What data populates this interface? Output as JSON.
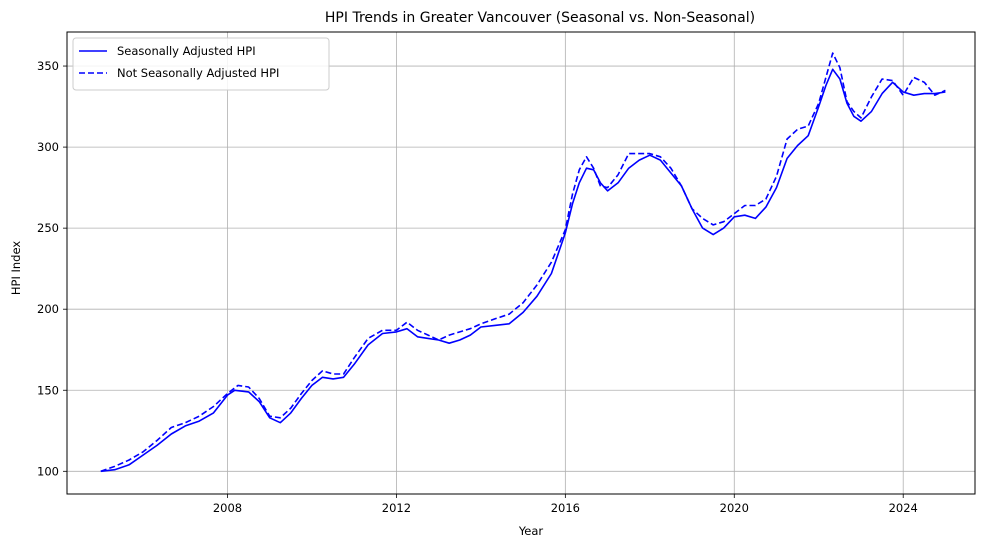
{
  "chart_data": {
    "type": "line",
    "title": "HPI Trends in Greater Vancouver (Seasonal vs. Non-Seasonal)",
    "xlabel": "Year",
    "ylabel": "HPI Index",
    "xlim": [
      2004.2,
      2025.7
    ],
    "ylim": [
      86,
      371
    ],
    "xticks": [
      2008,
      2012,
      2016,
      2020,
      2024
    ],
    "yticks": [
      100,
      150,
      200,
      250,
      300,
      350
    ],
    "grid": true,
    "legend_position": "top-left",
    "series": [
      {
        "name": "Seasonally Adjusted HPI",
        "color": "#0000ff",
        "dash": "solid",
        "points": [
          [
            2005.0,
            100
          ],
          [
            2005.33,
            101
          ],
          [
            2005.67,
            104
          ],
          [
            2006.0,
            110
          ],
          [
            2006.33,
            116
          ],
          [
            2006.67,
            123
          ],
          [
            2007.0,
            128
          ],
          [
            2007.33,
            131
          ],
          [
            2007.67,
            136
          ],
          [
            2008.0,
            147
          ],
          [
            2008.17,
            150
          ],
          [
            2008.5,
            149
          ],
          [
            2008.75,
            143
          ],
          [
            2009.0,
            133
          ],
          [
            2009.25,
            130
          ],
          [
            2009.5,
            136
          ],
          [
            2009.75,
            145
          ],
          [
            2010.0,
            153
          ],
          [
            2010.25,
            158
          ],
          [
            2010.5,
            157
          ],
          [
            2010.75,
            158
          ],
          [
            2011.0,
            166
          ],
          [
            2011.33,
            178
          ],
          [
            2011.67,
            185
          ],
          [
            2012.0,
            186
          ],
          [
            2012.25,
            188
          ],
          [
            2012.5,
            183
          ],
          [
            2012.75,
            182
          ],
          [
            2013.0,
            181
          ],
          [
            2013.25,
            179
          ],
          [
            2013.5,
            181
          ],
          [
            2013.75,
            184
          ],
          [
            2014.0,
            189
          ],
          [
            2014.33,
            190
          ],
          [
            2014.67,
            191
          ],
          [
            2015.0,
            198
          ],
          [
            2015.33,
            208
          ],
          [
            2015.67,
            222
          ],
          [
            2016.0,
            247
          ],
          [
            2016.17,
            265
          ],
          [
            2016.33,
            278
          ],
          [
            2016.5,
            287
          ],
          [
            2016.67,
            286
          ],
          [
            2016.83,
            278
          ],
          [
            2017.0,
            273
          ],
          [
            2017.25,
            278
          ],
          [
            2017.5,
            287
          ],
          [
            2017.75,
            292
          ],
          [
            2018.0,
            295
          ],
          [
            2018.25,
            292
          ],
          [
            2018.5,
            284
          ],
          [
            2018.75,
            276
          ],
          [
            2019.0,
            262
          ],
          [
            2019.25,
            250
          ],
          [
            2019.5,
            246
          ],
          [
            2019.75,
            250
          ],
          [
            2020.0,
            257
          ],
          [
            2020.25,
            258
          ],
          [
            2020.5,
            256
          ],
          [
            2020.75,
            263
          ],
          [
            2021.0,
            275
          ],
          [
            2021.25,
            293
          ],
          [
            2021.5,
            301
          ],
          [
            2021.75,
            307
          ],
          [
            2022.0,
            325
          ],
          [
            2022.17,
            338
          ],
          [
            2022.33,
            348
          ],
          [
            2022.5,
            342
          ],
          [
            2022.67,
            327
          ],
          [
            2022.83,
            319
          ],
          [
            2023.0,
            316
          ],
          [
            2023.25,
            322
          ],
          [
            2023.5,
            333
          ],
          [
            2023.75,
            340
          ],
          [
            2024.0,
            334
          ],
          [
            2024.25,
            332
          ],
          [
            2024.5,
            333
          ],
          [
            2024.75,
            333
          ],
          [
            2025.0,
            334
          ]
        ]
      },
      {
        "name": "Not Seasonally Adjusted HPI",
        "color": "#0000ff",
        "dash": "dashed",
        "points": [
          [
            2005.0,
            100
          ],
          [
            2005.33,
            103
          ],
          [
            2005.67,
            107
          ],
          [
            2006.0,
            112
          ],
          [
            2006.33,
            119
          ],
          [
            2006.67,
            127
          ],
          [
            2007.0,
            130
          ],
          [
            2007.33,
            134
          ],
          [
            2007.67,
            140
          ],
          [
            2008.0,
            148
          ],
          [
            2008.25,
            153
          ],
          [
            2008.5,
            152
          ],
          [
            2008.75,
            145
          ],
          [
            2009.0,
            134
          ],
          [
            2009.25,
            133
          ],
          [
            2009.5,
            139
          ],
          [
            2009.75,
            148
          ],
          [
            2010.0,
            156
          ],
          [
            2010.25,
            162
          ],
          [
            2010.5,
            160
          ],
          [
            2010.75,
            160
          ],
          [
            2011.0,
            170
          ],
          [
            2011.33,
            182
          ],
          [
            2011.67,
            187
          ],
          [
            2012.0,
            187
          ],
          [
            2012.25,
            192
          ],
          [
            2012.5,
            187
          ],
          [
            2012.75,
            184
          ],
          [
            2013.0,
            181
          ],
          [
            2013.25,
            184
          ],
          [
            2013.5,
            186
          ],
          [
            2013.75,
            188
          ],
          [
            2014.0,
            191
          ],
          [
            2014.33,
            194
          ],
          [
            2014.67,
            197
          ],
          [
            2015.0,
            204
          ],
          [
            2015.33,
            215
          ],
          [
            2015.67,
            229
          ],
          [
            2016.0,
            249
          ],
          [
            2016.17,
            271
          ],
          [
            2016.33,
            286
          ],
          [
            2016.5,
            294
          ],
          [
            2016.67,
            287
          ],
          [
            2016.83,
            276
          ],
          [
            2017.0,
            275
          ],
          [
            2017.25,
            283
          ],
          [
            2017.5,
            296
          ],
          [
            2017.75,
            296
          ],
          [
            2018.0,
            296
          ],
          [
            2018.25,
            294
          ],
          [
            2018.5,
            287
          ],
          [
            2018.75,
            276
          ],
          [
            2019.0,
            262
          ],
          [
            2019.25,
            256
          ],
          [
            2019.5,
            252
          ],
          [
            2019.75,
            254
          ],
          [
            2020.0,
            259
          ],
          [
            2020.25,
            264
          ],
          [
            2020.5,
            264
          ],
          [
            2020.75,
            268
          ],
          [
            2021.0,
            282
          ],
          [
            2021.25,
            305
          ],
          [
            2021.5,
            311
          ],
          [
            2021.75,
            313
          ],
          [
            2022.0,
            327
          ],
          [
            2022.17,
            343
          ],
          [
            2022.33,
            358
          ],
          [
            2022.5,
            349
          ],
          [
            2022.67,
            328
          ],
          [
            2022.83,
            322
          ],
          [
            2023.0,
            318
          ],
          [
            2023.25,
            331
          ],
          [
            2023.5,
            342
          ],
          [
            2023.75,
            341
          ],
          [
            2024.0,
            332
          ],
          [
            2024.25,
            343
          ],
          [
            2024.5,
            340
          ],
          [
            2024.75,
            332
          ],
          [
            2025.0,
            335
          ]
        ]
      }
    ]
  }
}
